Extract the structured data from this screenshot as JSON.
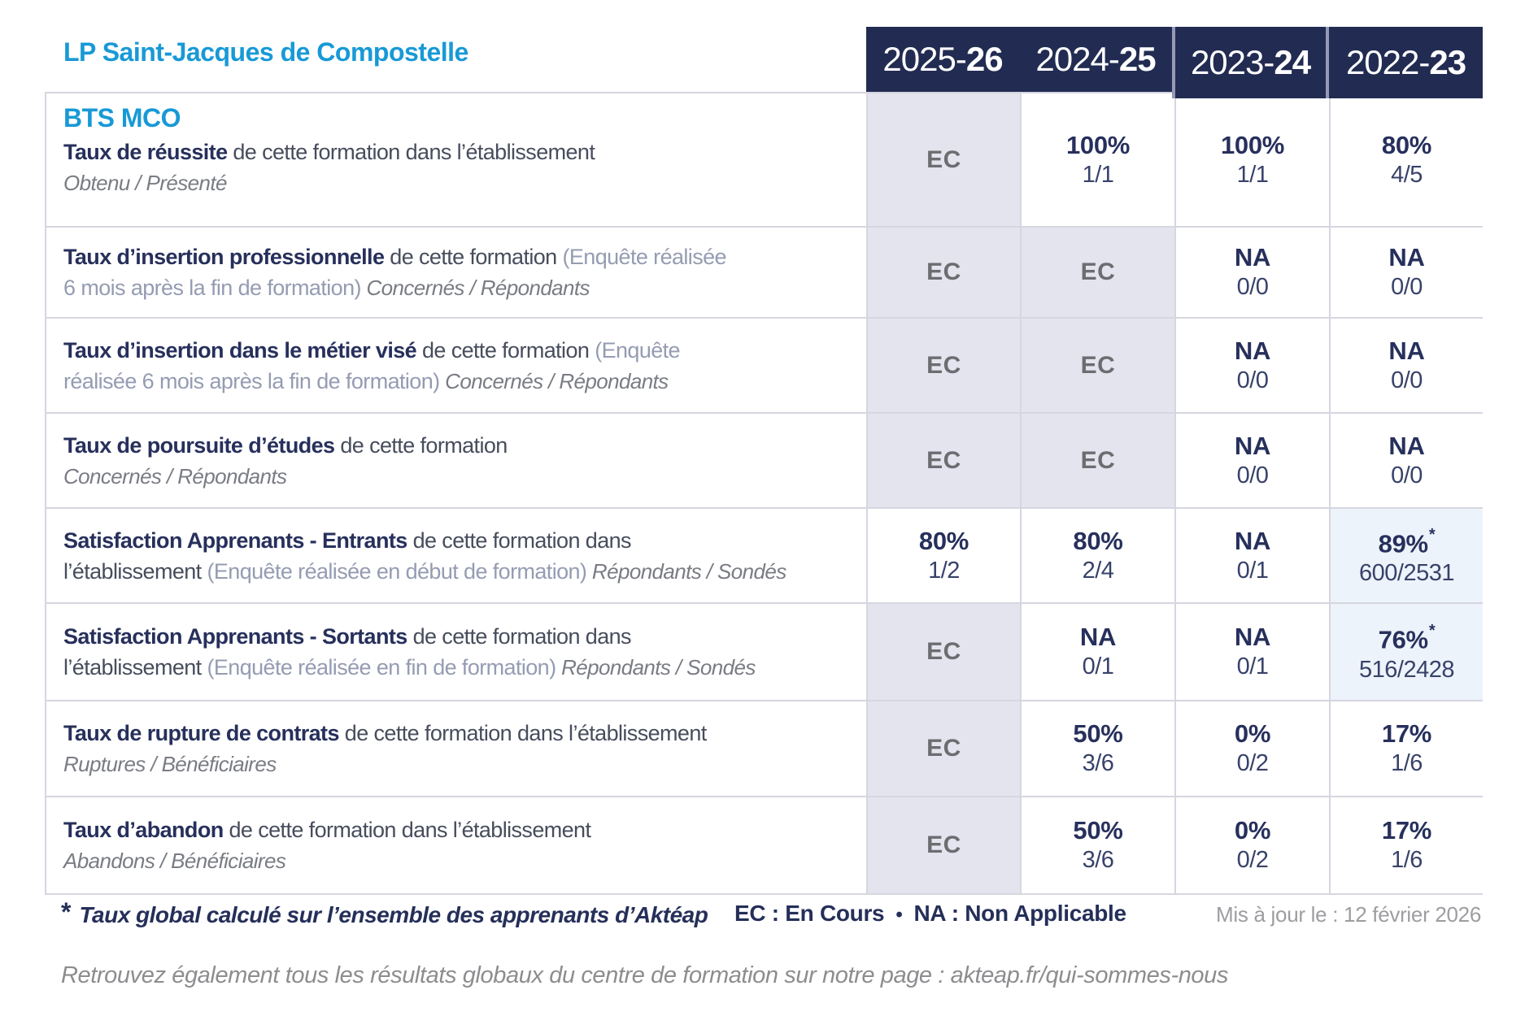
{
  "header": {
    "school": "LP Saint-Jacques de Compostelle",
    "years": [
      {
        "pre": "2025-",
        "bold": "26"
      },
      {
        "pre": "2024-",
        "bold": "25"
      },
      {
        "pre": "2023-",
        "bold": "24"
      },
      {
        "pre": "2022-",
        "bold": "23"
      }
    ]
  },
  "table": {
    "program": "BTS MCO",
    "rows": [
      {
        "name": "taux-de-reussite",
        "label": [
          {
            "t": "Taux de réussite",
            "s": "b"
          },
          {
            "t": " de cette formation dans l’établissement",
            "s": "n"
          },
          {
            "s": "br"
          },
          {
            "t": "Obtenu / Présenté",
            "s": "i"
          }
        ],
        "cells": [
          {
            "v": "EC",
            "ec": true
          },
          {
            "v": "100%",
            "sub": "1/1"
          },
          {
            "v": "100%",
            "sub": "1/1"
          },
          {
            "v": "80%",
            "sub": "4/5"
          }
        ]
      },
      {
        "name": "taux-insertion-professionnelle",
        "label": [
          {
            "t": "Taux d’insertion professionnelle",
            "s": "b"
          },
          {
            "t": " de cette formation ",
            "s": "n"
          },
          {
            "t": "(Enquête réalisée",
            "s": "p"
          },
          {
            "s": "br"
          },
          {
            "t": "6 mois après la fin de formation)",
            "s": "p"
          },
          {
            "t": " Concernés / Répondants",
            "s": "i"
          }
        ],
        "cells": [
          {
            "v": "EC",
            "ec": true
          },
          {
            "v": "EC",
            "ec": true
          },
          {
            "v": "NA",
            "sub": "0/0"
          },
          {
            "v": "NA",
            "sub": "0/0"
          }
        ]
      },
      {
        "name": "taux-insertion-metier-vise",
        "label": [
          {
            "t": "Taux d’insertion dans le métier visé",
            "s": "b"
          },
          {
            "t": " de cette formation ",
            "s": "n"
          },
          {
            "t": "(Enquête",
            "s": "p"
          },
          {
            "s": "br"
          },
          {
            "t": "réalisée 6 mois après la fin de formation)",
            "s": "p"
          },
          {
            "t": " Concernés / Répondants",
            "s": "i"
          }
        ],
        "cells": [
          {
            "v": "EC",
            "ec": true
          },
          {
            "v": "EC",
            "ec": true
          },
          {
            "v": "NA",
            "sub": "0/0"
          },
          {
            "v": "NA",
            "sub": "0/0"
          }
        ]
      },
      {
        "name": "taux-poursuite-etudes",
        "label": [
          {
            "t": "Taux de poursuite d’études",
            "s": "b"
          },
          {
            "t": " de cette formation",
            "s": "n"
          },
          {
            "s": "br"
          },
          {
            "t": "Concernés / Répondants",
            "s": "i"
          }
        ],
        "cells": [
          {
            "v": "EC",
            "ec": true
          },
          {
            "v": "EC",
            "ec": true
          },
          {
            "v": "NA",
            "sub": "0/0"
          },
          {
            "v": "NA",
            "sub": "0/0"
          }
        ]
      },
      {
        "name": "satisfaction-apprenants-entrants",
        "label": [
          {
            "t": "Satisfaction Apprenants - Entrants",
            "s": "b"
          },
          {
            "t": " de cette formation dans",
            "s": "n"
          },
          {
            "s": "br"
          },
          {
            "t": "l’établissement ",
            "s": "n"
          },
          {
            "t": "(Enquête réalisée en début de formation)",
            "s": "p"
          },
          {
            "t": " Répondants / Sondés",
            "s": "i"
          }
        ],
        "cells": [
          {
            "v": "80%",
            "sub": "1/2"
          },
          {
            "v": "80%",
            "sub": "2/4"
          },
          {
            "v": "NA",
            "sub": "0/1"
          },
          {
            "v": "89%",
            "star": true,
            "sub": "600/2531",
            "hl": true
          }
        ]
      },
      {
        "name": "satisfaction-apprenants-sortants",
        "label": [
          {
            "t": "Satisfaction Apprenants - Sortants",
            "s": "b"
          },
          {
            "t": " de cette formation dans",
            "s": "n"
          },
          {
            "s": "br"
          },
          {
            "t": "l’établissement ",
            "s": "n"
          },
          {
            "t": "(Enquête réalisée en fin de formation)",
            "s": "p"
          },
          {
            "t": " Répondants / Sondés",
            "s": "i"
          }
        ],
        "cells": [
          {
            "v": "EC",
            "ec": true
          },
          {
            "v": "NA",
            "sub": "0/1"
          },
          {
            "v": "NA",
            "sub": "0/1"
          },
          {
            "v": "76%",
            "star": true,
            "sub": "516/2428",
            "hl": true
          }
        ]
      },
      {
        "name": "taux-rupture-contrats",
        "label": [
          {
            "t": "Taux de rupture de contrats",
            "s": "b"
          },
          {
            "t": " de cette formation dans l’établissement",
            "s": "n"
          },
          {
            "s": "br"
          },
          {
            "t": "Ruptures / Bénéficiaires",
            "s": "i"
          }
        ],
        "cells": [
          {
            "v": "EC",
            "ec": true
          },
          {
            "v": "50%",
            "sub": "3/6"
          },
          {
            "v": "0%",
            "sub": "0/2"
          },
          {
            "v": "17%",
            "sub": "1/6"
          }
        ]
      },
      {
        "name": "taux-abandon",
        "label": [
          {
            "t": "Taux d’abandon",
            "s": "b"
          },
          {
            "t": " de cette formation dans l’établissement",
            "s": "n"
          },
          {
            "s": "br"
          },
          {
            "t": "Abandons / Bénéficiaires",
            "s": "i"
          }
        ],
        "cells": [
          {
            "v": "EC",
            "ec": true
          },
          {
            "v": "50%",
            "sub": "3/6"
          },
          {
            "v": "0%",
            "sub": "0/2"
          },
          {
            "v": "17%",
            "sub": "1/6"
          }
        ]
      }
    ]
  },
  "footer": {
    "star": "*",
    "note": "Taux global calculé sur l’ensemble des apprenants d’Aktéap",
    "legend_ec": "EC : En Cours",
    "bullet": "•",
    "legend_na": "NA : Non Applicable",
    "updated": "Mis à jour le : 12 février 2026",
    "bottom": "Retrouvez également tous les résultats globaux du centre de formation sur notre page : akteap.fr/qui-sommes-nous"
  },
  "colors": {
    "accent_blue": "#1899d6",
    "navy": "#222c52",
    "lavender_cell": "#e4e4ee",
    "highlight_cell": "#edf3fa",
    "grid_border": "#d6d6e0"
  }
}
